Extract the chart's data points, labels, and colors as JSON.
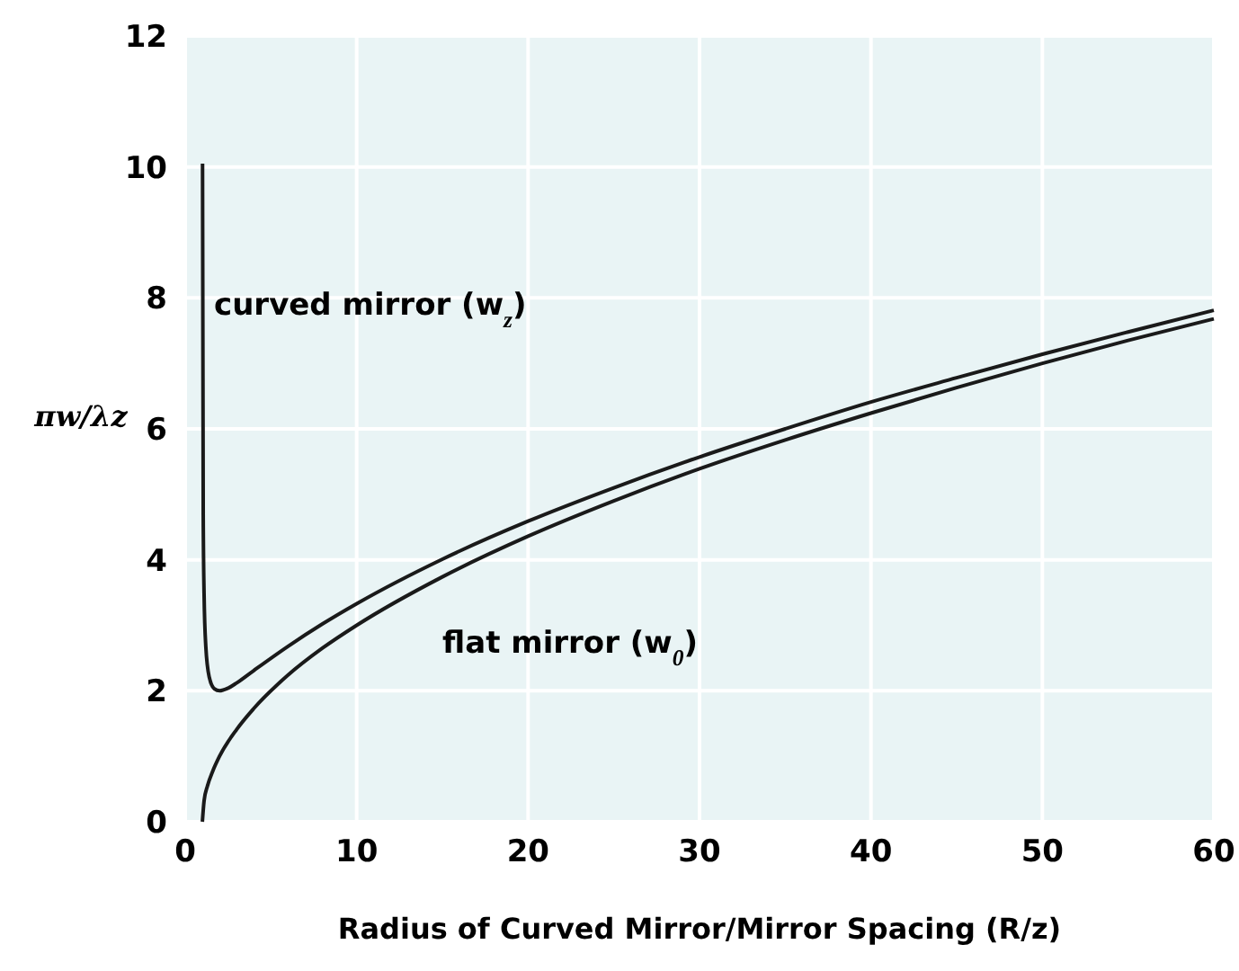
{
  "chart_data": {
    "type": "line",
    "xlabel": "Radius of Curved Mirror/Mirror Spacing (R/z)",
    "ylabel": "πw/λz",
    "xlim": [
      0,
      60
    ],
    "ylim": [
      0,
      12
    ],
    "xticks": [
      0,
      10,
      20,
      30,
      40,
      50,
      60
    ],
    "yticks": [
      0,
      2,
      4,
      6,
      8,
      10,
      12
    ],
    "grid": true,
    "marker": "none",
    "line_style": "solid",
    "series": [
      {
        "color": "#1a1a1a",
        "x": [
          1.01,
          1.05,
          1.1,
          1.2,
          1.4,
          1.7,
          2,
          2.5,
          3,
          4,
          6,
          8,
          10,
          15,
          20,
          25,
          30,
          35,
          40,
          45,
          50,
          55,
          60
        ],
        "values": [
          10.05,
          4.7,
          3.48,
          2.68,
          2.21,
          2.03,
          2,
          2.04,
          2.12,
          2.31,
          2.68,
          3.02,
          3.33,
          4.01,
          4.59,
          5.1,
          5.57,
          6.0,
          6.41,
          6.78,
          7.14,
          7.48,
          7.81
        ]
      },
      {
        "color": "#1a1a1a",
        "x": [
          1,
          1.1,
          1.3,
          1.6,
          2,
          3,
          4,
          6,
          8,
          10,
          15,
          20,
          25,
          30,
          35,
          40,
          45,
          50,
          55,
          60
        ],
        "values": [
          0,
          0.32,
          0.55,
          0.77,
          1,
          1.41,
          1.73,
          2.24,
          2.65,
          3,
          3.74,
          4.36,
          4.9,
          5.39,
          5.83,
          6.24,
          6.63,
          7,
          7.35,
          7.68
        ]
      }
    ],
    "annotations": [
      "curved mirror (w$_{z}$)",
      "flat mirror (w$_{0}$)"
    ]
  }
}
